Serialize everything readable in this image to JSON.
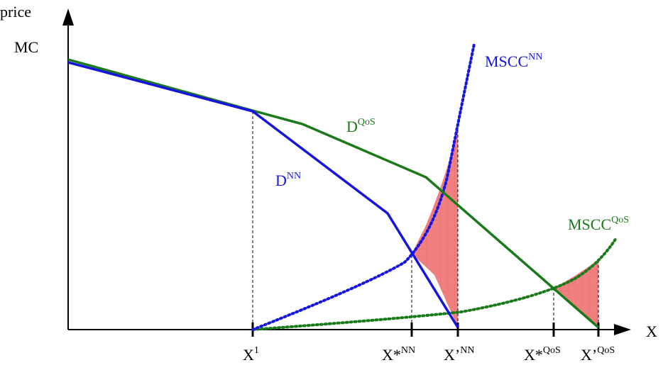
{
  "axis": {
    "y_label": "price",
    "y_tick_label": "MC",
    "x_label": "X"
  },
  "curve_labels": {
    "d_nn": {
      "base": "D",
      "sup": "NN"
    },
    "d_qos": {
      "base": "D",
      "sup": "QoS"
    },
    "mscc_nn": {
      "base": "MSCC",
      "sup": "NN"
    },
    "mscc_qos": {
      "base": "MSCC",
      "sup": "QoS"
    }
  },
  "x_ticks": {
    "x1": {
      "base": "X",
      "sup": "1"
    },
    "xstar_nn": {
      "base": "X*",
      "sup": "NN"
    },
    "xprime_nn": {
      "base": "X’",
      "sup": "NN"
    },
    "xstar_qos": {
      "base": "X*",
      "sup": "QoS"
    },
    "xprime_qos": {
      "base": "X’",
      "sup": "QoS"
    }
  },
  "colors": {
    "d_nn": "#1515dd",
    "d_qos": "#1a7a1a",
    "mscc_nn": "#1515dd",
    "mscc_qos": "#1a7a1a",
    "deadweight_fill": "#f08080",
    "axis": "#000000"
  }
}
